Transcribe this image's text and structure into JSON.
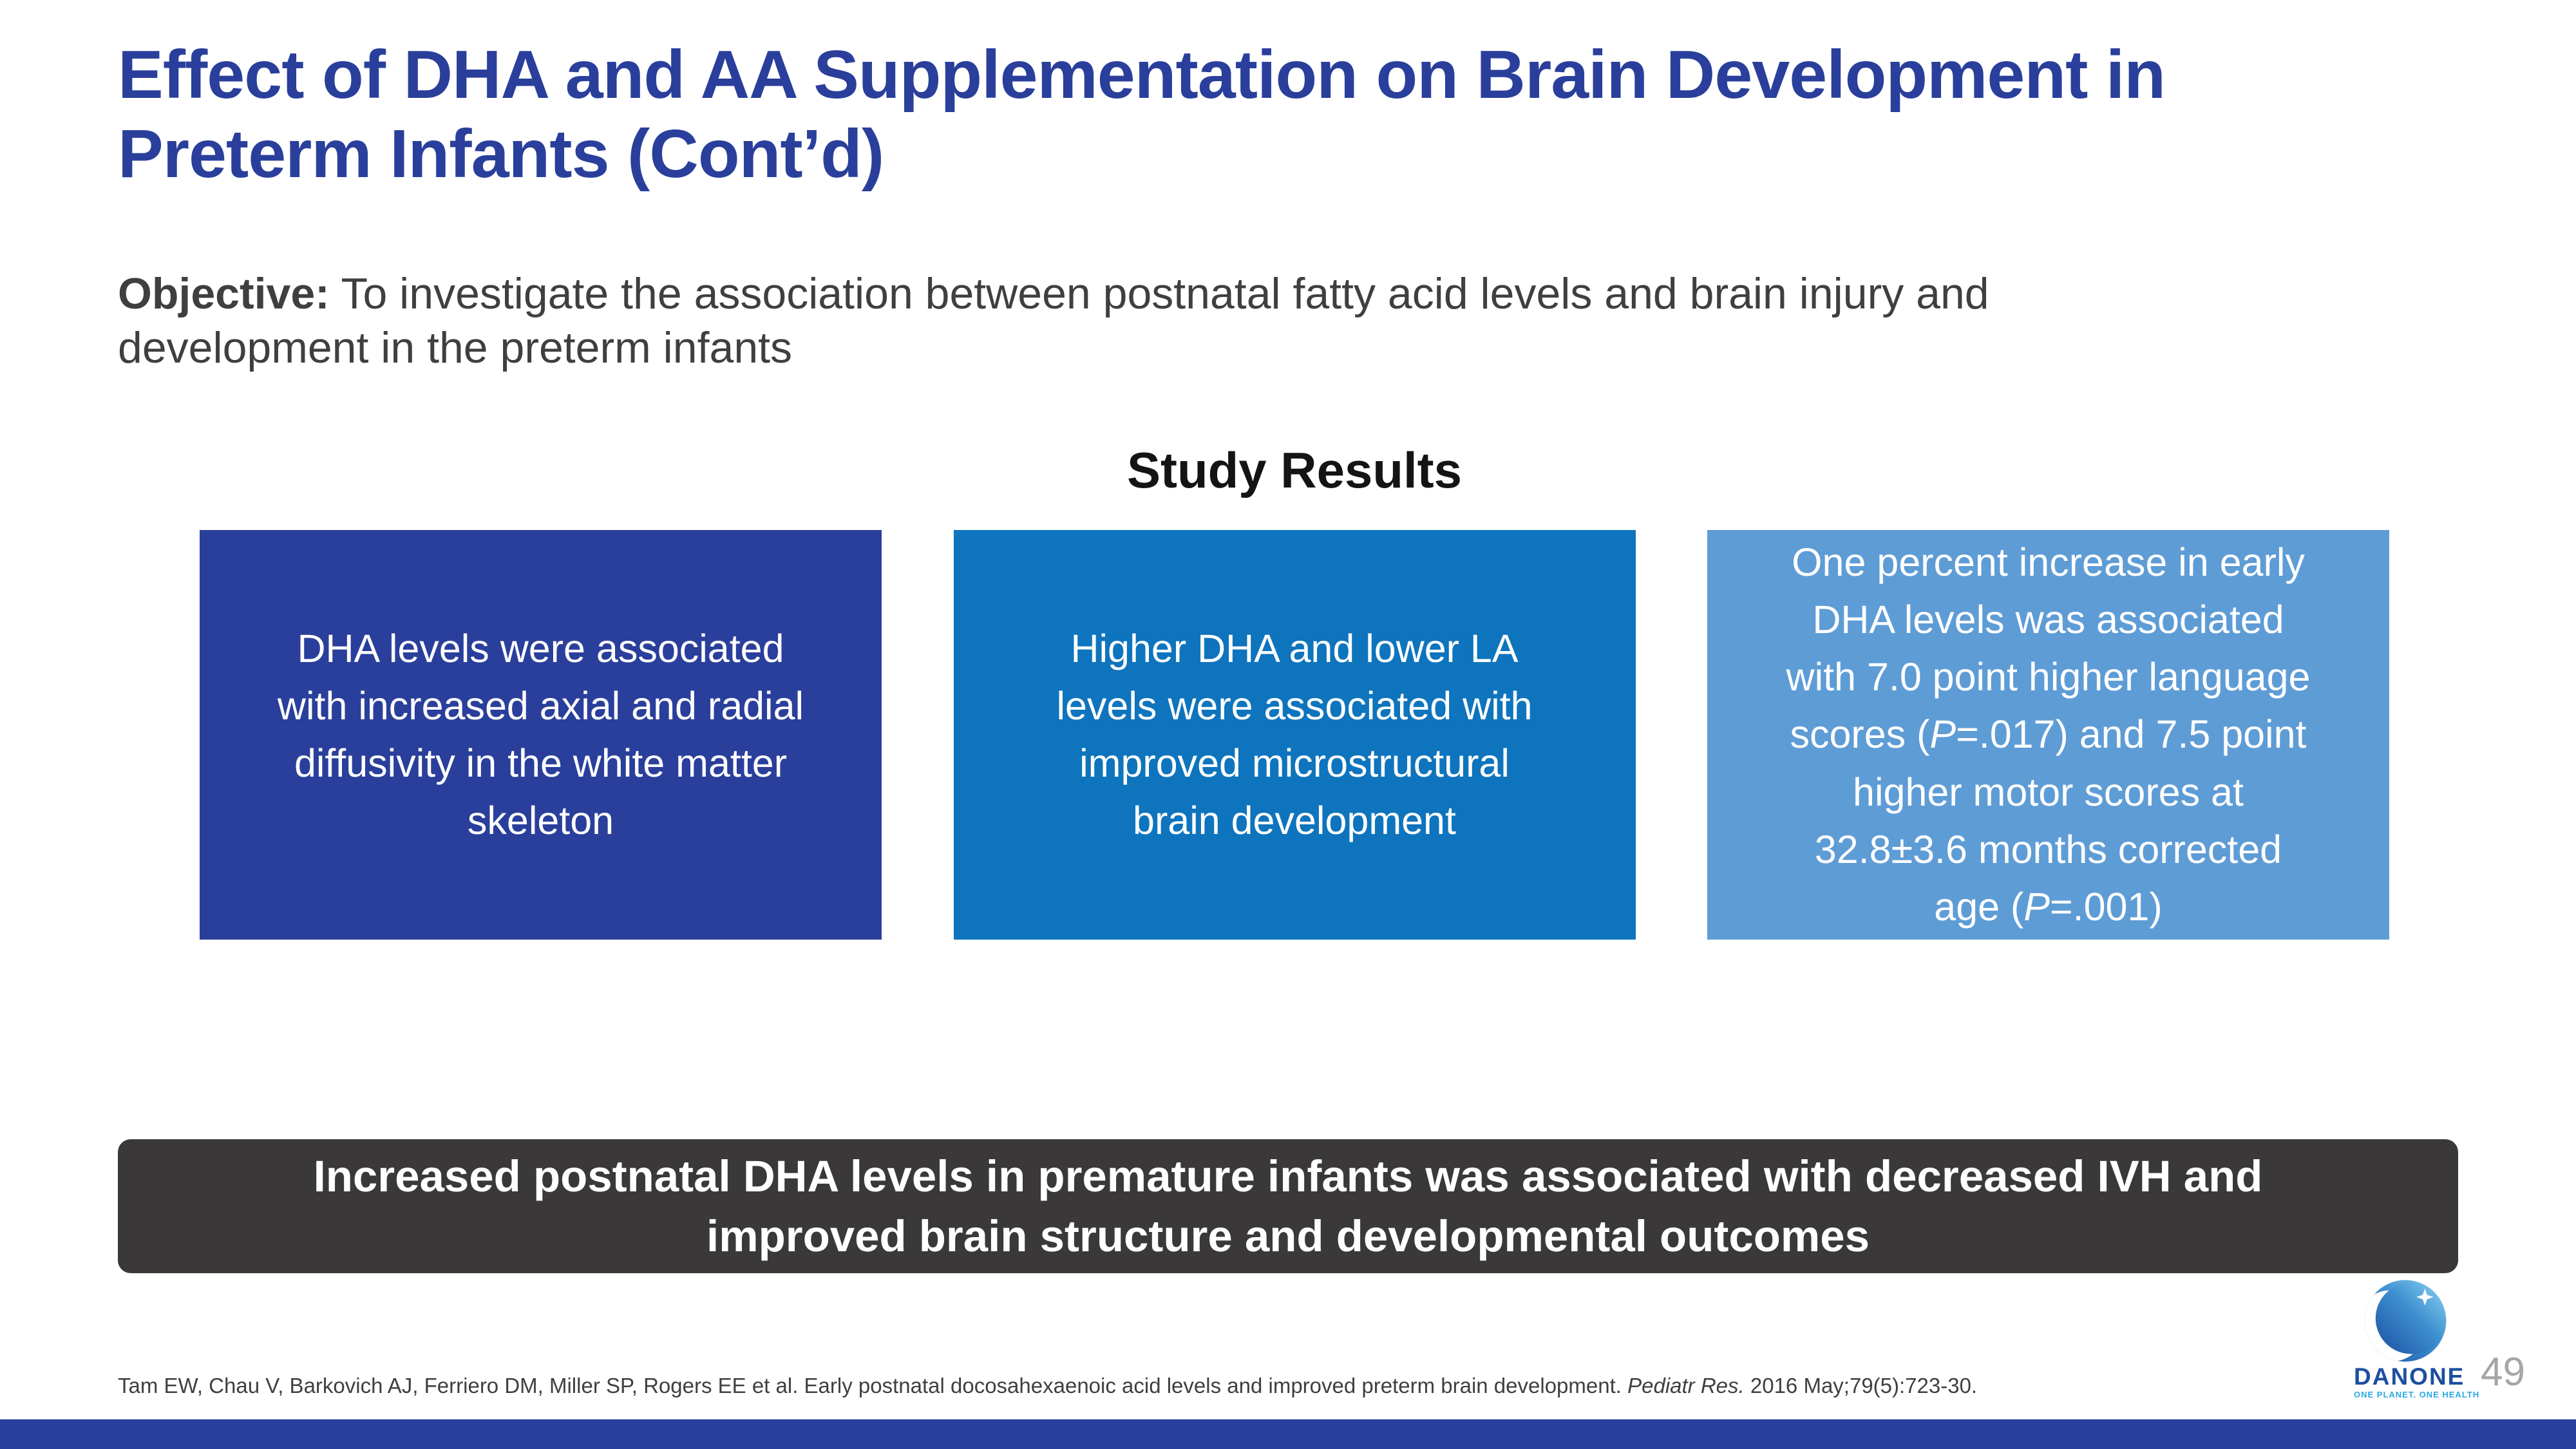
{
  "colors": {
    "title_blue": "#2a3f9b",
    "box1_bg": "#2a3f9b",
    "box2_bg": "#0e74bd",
    "box3_bg": "#5e9cd6",
    "conclusion_bg": "#3a3838",
    "bottom_bar": "#2a3f9b",
    "body_text": "#3f3f3f",
    "page_number_gray": "#a6a6a6"
  },
  "header": {
    "title": "Effect of DHA and AA Supplementation on Brain Development in\nPreterm Infants (Cont’d)"
  },
  "objective": {
    "segments": [
      {
        "text": "Objective:",
        "style": "bold"
      },
      {
        "text": " To investigate the association between postnatal fatty acid levels and brain injury and\ndevelopment in the preterm infants"
      }
    ]
  },
  "section": {
    "heading": "Study Results"
  },
  "boxes": [
    {
      "text": "DHA levels were associated\nwith increased axial and radial\ndiffusivity in the white matter\nskeleton"
    },
    {
      "text": "Higher DHA and lower LA\nlevels were associated with\nimproved microstructural\nbrain development"
    },
    {
      "segments": [
        {
          "text": "One percent increase in early\nDHA levels was associated\nwith 7.0 point higher language\nscores ("
        },
        {
          "text": "P",
          "style": "italic"
        },
        {
          "text": "=.017) and 7.5 point\nhigher motor scores at\n32.8±3.6 months corrected\nage ("
        },
        {
          "text": "P",
          "style": "italic"
        },
        {
          "text": "=.001)"
        }
      ]
    }
  ],
  "conclusion": {
    "text": "Increased postnatal DHA levels in premature infants was associated with decreased IVH and\nimproved brain structure and developmental outcomes"
  },
  "footer": {
    "citation_segments": [
      {
        "text": "Tam EW, Chau V, Barkovich AJ, Ferriero DM, Miller SP, Rogers EE et al. Early postnatal docosahexaenoic acid levels and improved preterm brain development. "
      },
      {
        "text": "Pediatr Res.",
        "style": "italic"
      },
      {
        "text": " 2016 May;79(5):723-30."
      }
    ],
    "page_number": "49"
  },
  "logo": {
    "brand": "DANONE",
    "tagline": "ONE PLANET. ONE HEALTH"
  }
}
